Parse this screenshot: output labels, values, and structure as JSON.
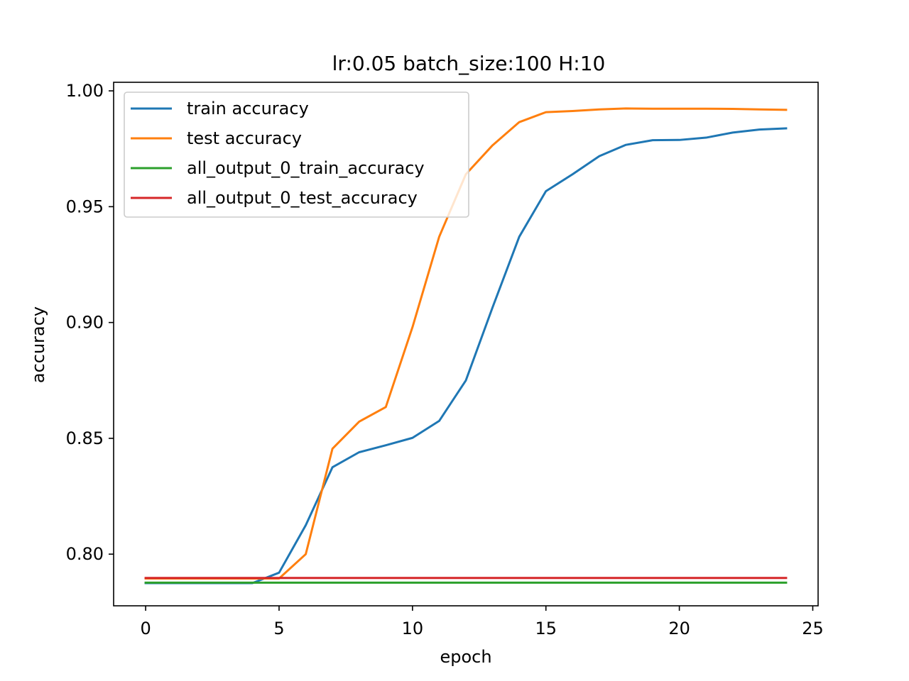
{
  "chart_data": {
    "type": "line",
    "title": "lr:0.05 batch_size:100 H:10",
    "xlabel": "epoch",
    "ylabel": "accuracy",
    "xlim": [
      -1.2,
      25.2
    ],
    "ylim": [
      0.7777,
      1.0037
    ],
    "xticks": [
      0,
      5,
      10,
      15,
      20,
      25
    ],
    "xtick_labels": [
      "0",
      "5",
      "10",
      "15",
      "20",
      "25"
    ],
    "yticks": [
      0.8,
      0.85,
      0.9,
      0.95,
      1.0
    ],
    "ytick_labels": [
      "0.80",
      "0.85",
      "0.90",
      "0.95",
      "1.00"
    ],
    "grid": false,
    "legend_position": "upper-left",
    "x": [
      0,
      1,
      2,
      3,
      4,
      5,
      6,
      7,
      8,
      9,
      10,
      11,
      12,
      13,
      14,
      15,
      16,
      17,
      18,
      19,
      20,
      21,
      22,
      23,
      24
    ],
    "series": [
      {
        "name": "train accuracy",
        "color": "#1f77b4",
        "values": [
          0.7875,
          0.7875,
          0.7875,
          0.7875,
          0.7875,
          0.792,
          0.8125,
          0.8375,
          0.844,
          0.847,
          0.8502,
          0.8575,
          0.875,
          0.9065,
          0.937,
          0.9567,
          0.964,
          0.9718,
          0.9767,
          0.9787,
          0.9788,
          0.9798,
          0.982,
          0.9833,
          0.9838
        ]
      },
      {
        "name": "test accuracy",
        "color": "#ff7f0e",
        "values": [
          0.7895,
          0.7895,
          0.7895,
          0.7895,
          0.7895,
          0.7895,
          0.8,
          0.8455,
          0.8572,
          0.8635,
          0.898,
          0.937,
          0.964,
          0.9765,
          0.9865,
          0.9908,
          0.9913,
          0.992,
          0.9924,
          0.9923,
          0.9923,
          0.9923,
          0.9922,
          0.992,
          0.9918
        ]
      },
      {
        "name": "all_output_0_train_accuracy",
        "color": "#2ca02c",
        "values": [
          0.7877,
          0.7877,
          0.7877,
          0.7877,
          0.7877,
          0.7877,
          0.7877,
          0.7877,
          0.7877,
          0.7877,
          0.7877,
          0.7877,
          0.7877,
          0.7877,
          0.7877,
          0.7877,
          0.7877,
          0.7877,
          0.7877,
          0.7877,
          0.7877,
          0.7877,
          0.7877,
          0.7877,
          0.7877
        ]
      },
      {
        "name": "all_output_0_test_accuracy",
        "color": "#d62728",
        "values": [
          0.7897,
          0.7897,
          0.7897,
          0.7897,
          0.7897,
          0.7897,
          0.7897,
          0.7897,
          0.7897,
          0.7897,
          0.7897,
          0.7897,
          0.7897,
          0.7897,
          0.7897,
          0.7897,
          0.7897,
          0.7897,
          0.7897,
          0.7897,
          0.7897,
          0.7897,
          0.7897,
          0.7897,
          0.7897
        ]
      }
    ]
  }
}
